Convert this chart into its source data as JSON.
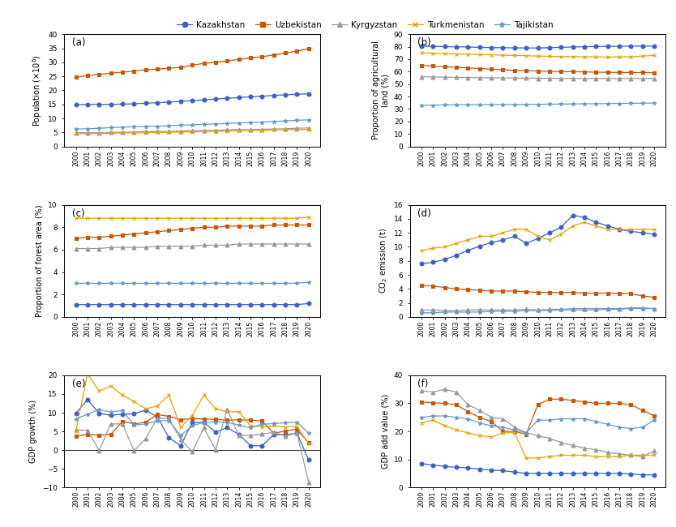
{
  "years": [
    2000,
    2001,
    2002,
    2003,
    2004,
    2005,
    2006,
    2007,
    2008,
    2009,
    2010,
    2011,
    2012,
    2013,
    2014,
    2015,
    2016,
    2017,
    2018,
    2019,
    2020
  ],
  "legend_labels": [
    "Kazakhstan",
    "Uzbekistan",
    "Kyrgyzstan",
    "Turkmenistan",
    "Tajikistan"
  ],
  "colors": {
    "Kazakhstan": "#3A5FCD",
    "Uzbekistan": "#CC5500",
    "Kyrgyzstan": "#999999",
    "Turkmenistan": "#E8A000",
    "Tajikistan": "#6699CC"
  },
  "markers": {
    "Kazakhstan": "o",
    "Uzbekistan": "s",
    "Kyrgyzstan": "^",
    "Turkmenistan": "x",
    "Tajikistan": "*"
  },
  "population": {
    "Kazakhstan": [
      14.9,
      15.0,
      15.0,
      15.0,
      15.1,
      15.2,
      15.4,
      15.6,
      15.8,
      16.1,
      16.3,
      16.6,
      16.9,
      17.2,
      17.4,
      17.7,
      17.9,
      18.2,
      18.4,
      18.6,
      18.8
    ],
    "Uzbekistan": [
      24.7,
      25.3,
      25.7,
      26.1,
      26.5,
      26.9,
      27.3,
      27.6,
      27.9,
      28.2,
      29.0,
      29.6,
      30.0,
      30.5,
      31.0,
      31.6,
      32.0,
      32.6,
      33.3,
      34.0,
      34.9
    ],
    "Kyrgyzstan": [
      4.9,
      4.9,
      4.9,
      5.0,
      5.1,
      5.2,
      5.3,
      5.4,
      5.4,
      5.5,
      5.6,
      5.7,
      5.8,
      5.9,
      6.0,
      6.0,
      6.1,
      6.2,
      6.3,
      6.5,
      6.6
    ],
    "Turkmenistan": [
      4.5,
      4.6,
      4.6,
      4.7,
      4.8,
      4.8,
      4.9,
      5.0,
      5.0,
      5.1,
      5.2,
      5.3,
      5.4,
      5.5,
      5.6,
      5.7,
      5.8,
      5.9,
      6.0,
      6.0,
      6.1
    ],
    "Tajikistan": [
      6.2,
      6.3,
      6.5,
      6.7,
      6.9,
      7.0,
      7.1,
      7.2,
      7.4,
      7.6,
      7.7,
      7.9,
      8.0,
      8.2,
      8.4,
      8.5,
      8.7,
      8.9,
      9.1,
      9.3,
      9.5
    ]
  },
  "agri_land": {
    "Kazakhstan": [
      80.5,
      80.3,
      80.1,
      79.9,
      79.8,
      79.5,
      79.3,
      79.2,
      79.1,
      79.0,
      79.0,
      79.2,
      79.5,
      79.8,
      80.0,
      80.2,
      80.3,
      80.4,
      80.5,
      80.5,
      80.5
    ],
    "Uzbekistan": [
      65.0,
      64.5,
      64.0,
      63.5,
      63.0,
      62.5,
      62.0,
      61.5,
      61.0,
      60.7,
      60.5,
      60.3,
      60.1,
      60.0,
      59.8,
      59.6,
      59.5,
      59.4,
      59.3,
      59.3,
      59.2
    ],
    "Kyrgyzstan": [
      56.0,
      55.8,
      55.6,
      55.4,
      55.3,
      55.2,
      55.1,
      55.0,
      54.9,
      54.8,
      54.7,
      54.7,
      54.6,
      54.6,
      54.5,
      54.5,
      54.5,
      54.5,
      54.5,
      54.5,
      54.5
    ],
    "Turkmenistan": [
      75.0,
      74.8,
      74.5,
      74.2,
      74.0,
      73.8,
      73.5,
      73.2,
      73.0,
      72.8,
      72.5,
      72.3,
      72.1,
      72.0,
      71.9,
      71.8,
      71.8,
      71.8,
      72.0,
      72.5,
      73.0
    ],
    "Tajikistan": [
      33.0,
      33.2,
      33.3,
      33.4,
      33.5,
      33.5,
      33.6,
      33.6,
      33.7,
      33.7,
      33.8,
      33.9,
      34.0,
      34.1,
      34.2,
      34.3,
      34.4,
      34.5,
      34.6,
      34.7,
      34.8
    ]
  },
  "forest_area": {
    "Kazakhstan": [
      1.1,
      1.1,
      1.1,
      1.1,
      1.1,
      1.1,
      1.1,
      1.1,
      1.1,
      1.1,
      1.1,
      1.1,
      1.1,
      1.1,
      1.1,
      1.1,
      1.1,
      1.1,
      1.1,
      1.1,
      1.2
    ],
    "Uzbekistan": [
      7.0,
      7.1,
      7.1,
      7.2,
      7.3,
      7.4,
      7.5,
      7.6,
      7.7,
      7.8,
      7.9,
      8.0,
      8.0,
      8.1,
      8.1,
      8.1,
      8.1,
      8.2,
      8.2,
      8.2,
      8.2
    ],
    "Kyrgyzstan": [
      6.1,
      6.1,
      6.1,
      6.2,
      6.2,
      6.2,
      6.2,
      6.3,
      6.3,
      6.3,
      6.3,
      6.4,
      6.4,
      6.4,
      6.5,
      6.5,
      6.5,
      6.5,
      6.5,
      6.5,
      6.5
    ],
    "Turkmenistan": [
      8.8,
      8.8,
      8.8,
      8.8,
      8.8,
      8.8,
      8.8,
      8.8,
      8.8,
      8.8,
      8.8,
      8.8,
      8.8,
      8.8,
      8.8,
      8.8,
      8.8,
      8.8,
      8.8,
      8.8,
      8.9
    ],
    "Tajikistan": [
      3.0,
      3.0,
      3.0,
      3.0,
      3.0,
      3.0,
      3.0,
      3.0,
      3.0,
      3.0,
      3.0,
      3.0,
      3.0,
      3.0,
      3.0,
      3.0,
      3.0,
      3.0,
      3.0,
      3.0,
      3.1
    ]
  },
  "co2": {
    "Kazakhstan": [
      7.6,
      7.8,
      8.2,
      8.8,
      9.5,
      10.1,
      10.6,
      11.0,
      11.5,
      10.5,
      11.2,
      12.0,
      12.8,
      14.5,
      14.2,
      13.5,
      13.0,
      12.5,
      12.2,
      12.0,
      11.8
    ],
    "Uzbekistan": [
      4.5,
      4.4,
      4.2,
      4.0,
      3.9,
      3.8,
      3.7,
      3.7,
      3.7,
      3.6,
      3.5,
      3.5,
      3.5,
      3.5,
      3.4,
      3.4,
      3.4,
      3.4,
      3.3,
      3.0,
      2.8
    ],
    "Kyrgyzstan": [
      1.0,
      1.0,
      0.9,
      0.9,
      1.0,
      1.0,
      1.0,
      1.0,
      1.0,
      1.1,
      1.0,
      1.1,
      1.1,
      1.2,
      1.2,
      1.2,
      1.2,
      1.2,
      1.3,
      1.3,
      1.2
    ],
    "Turkmenistan": [
      9.5,
      9.8,
      10.0,
      10.5,
      11.0,
      11.5,
      11.5,
      12.0,
      12.5,
      12.5,
      11.5,
      11.0,
      11.8,
      13.0,
      13.5,
      13.0,
      12.5,
      12.5,
      12.5,
      12.5,
      12.5
    ],
    "Tajikistan": [
      0.6,
      0.6,
      0.7,
      0.7,
      0.7,
      0.7,
      0.8,
      0.8,
      0.8,
      0.9,
      0.9,
      0.9,
      1.0,
      1.0,
      1.0,
      1.0,
      1.1,
      1.1,
      1.2,
      1.2,
      1.2
    ]
  },
  "gdp_growth": {
    "Kazakhstan": [
      9.8,
      13.5,
      9.8,
      9.3,
      9.6,
      9.7,
      10.7,
      8.9,
      3.3,
      1.2,
      7.3,
      7.4,
      4.8,
      6.0,
      4.2,
      1.2,
      1.1,
      4.1,
      4.1,
      4.5,
      -2.6
    ],
    "Uzbekistan": [
      3.8,
      4.2,
      4.0,
      4.2,
      7.7,
      7.0,
      7.5,
      9.5,
      9.0,
      8.1,
      8.5,
      8.3,
      8.2,
      8.0,
      8.1,
      8.0,
      7.8,
      4.5,
      5.1,
      5.6,
      1.9
    ],
    "Kyrgyzstan": [
      5.4,
      5.3,
      -0.1,
      7.0,
      7.0,
      -0.2,
      3.1,
      8.5,
      8.4,
      2.9,
      -0.5,
      6.0,
      0.0,
      10.9,
      4.0,
      3.9,
      4.3,
      4.7,
      3.8,
      4.6,
      -8.6
    ],
    "Turkmenistan": [
      5.0,
      20.4,
      15.8,
      17.1,
      14.7,
      13.0,
      11.0,
      11.8,
      14.7,
      6.1,
      9.2,
      14.7,
      11.1,
      10.2,
      10.3,
      6.5,
      6.2,
      6.5,
      6.2,
      6.3,
      1.8
    ],
    "Tajikistan": [
      8.3,
      9.6,
      10.8,
      10.2,
      10.6,
      6.7,
      7.0,
      7.8,
      7.9,
      3.9,
      6.5,
      7.4,
      7.5,
      7.4,
      6.7,
      6.0,
      6.9,
      7.1,
      7.3,
      7.5,
      4.5
    ]
  },
  "gdp_addval": {
    "Kazakhstan": [
      8.5,
      8.0,
      7.5,
      7.2,
      7.0,
      6.5,
      6.2,
      6.0,
      5.5,
      5.0,
      5.0,
      5.0,
      5.0,
      5.0,
      5.0,
      5.0,
      5.0,
      5.0,
      4.8,
      4.5,
      4.5
    ],
    "Uzbekistan": [
      30.5,
      30.2,
      30.0,
      29.5,
      27.0,
      25.0,
      23.5,
      20.0,
      20.0,
      19.0,
      29.5,
      31.5,
      31.5,
      31.0,
      30.5,
      30.0,
      30.0,
      30.0,
      29.5,
      27.5,
      25.5
    ],
    "Kyrgyzstan": [
      34.5,
      34.0,
      35.0,
      34.0,
      29.5,
      27.5,
      25.0,
      24.5,
      21.5,
      19.5,
      18.5,
      17.5,
      16.0,
      15.0,
      14.0,
      13.5,
      12.5,
      12.0,
      11.5,
      11.0,
      13.0
    ],
    "Turkmenistan": [
      23.0,
      24.0,
      22.0,
      20.5,
      19.5,
      18.5,
      18.0,
      19.5,
      19.5,
      10.5,
      10.5,
      11.0,
      11.5,
      11.5,
      11.5,
      11.0,
      11.0,
      11.0,
      11.5,
      11.5,
      11.5
    ],
    "Tajikistan": [
      25.0,
      25.5,
      25.5,
      25.0,
      24.5,
      23.0,
      22.0,
      21.5,
      20.5,
      19.5,
      24.0,
      24.0,
      24.5,
      24.5,
      24.5,
      23.5,
      22.5,
      21.5,
      21.0,
      21.5,
      24.0
    ]
  }
}
